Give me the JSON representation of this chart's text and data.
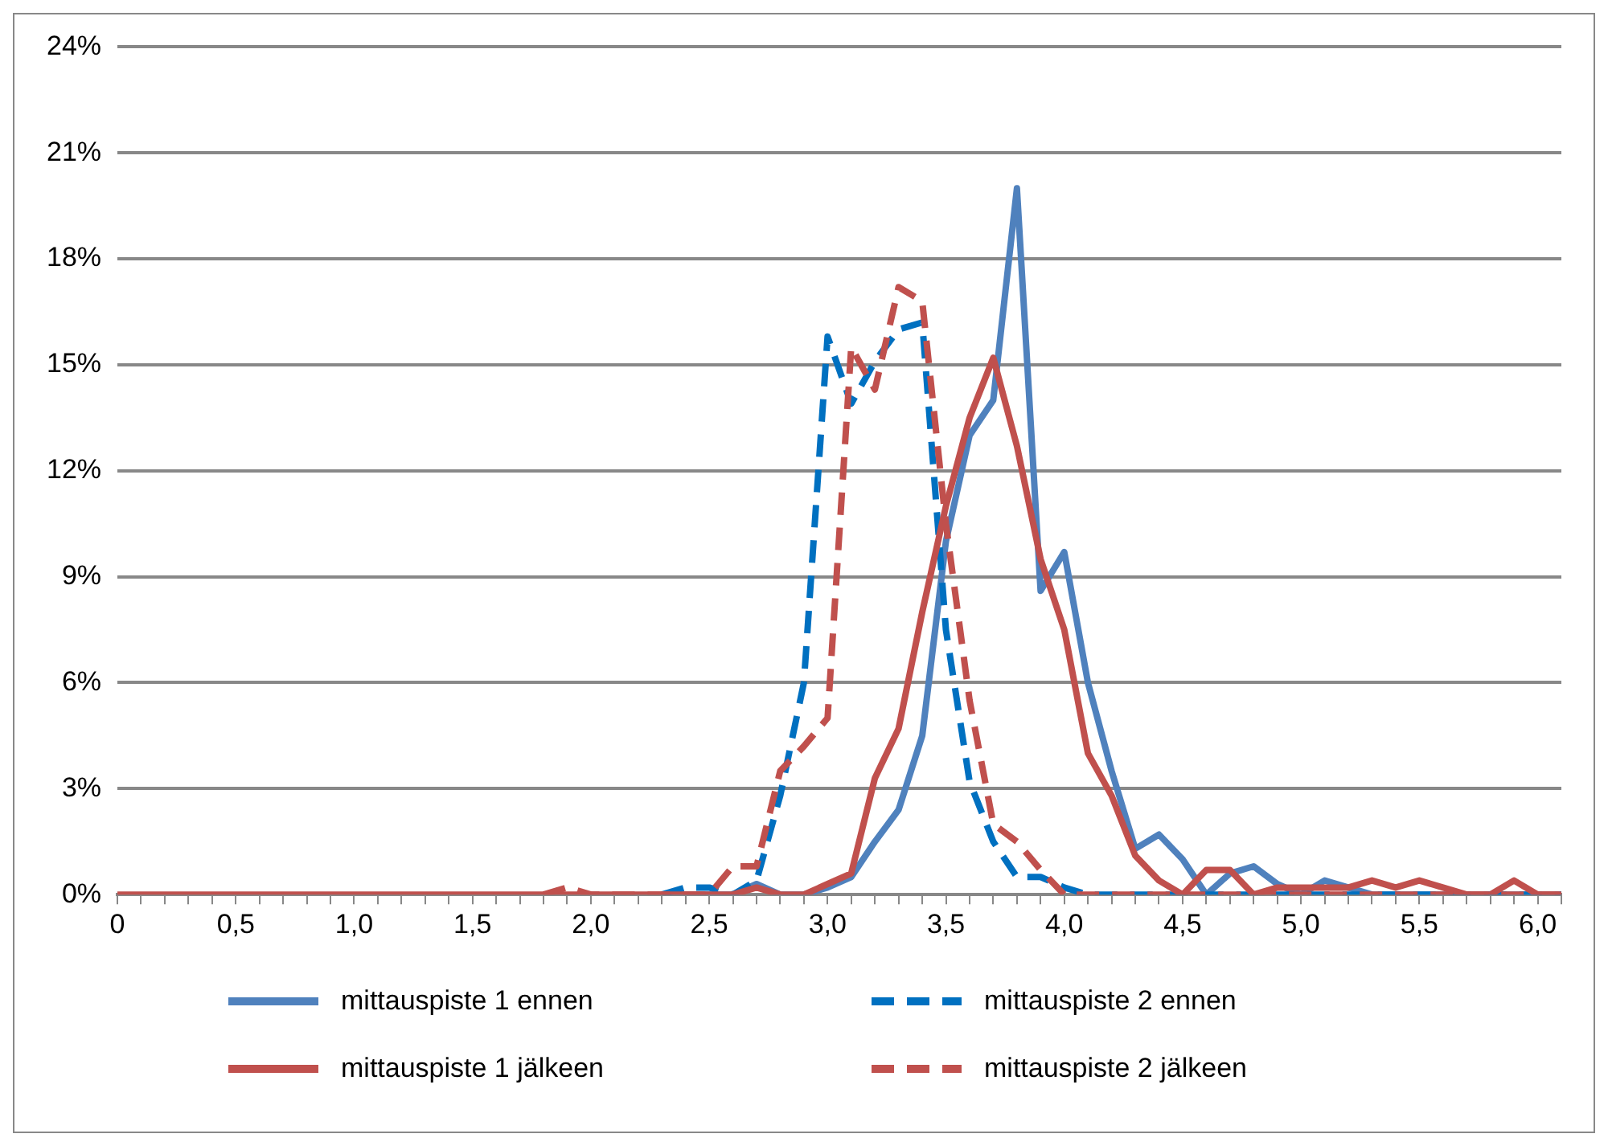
{
  "chart_data": {
    "type": "line",
    "categories": [
      "0",
      null,
      null,
      null,
      null,
      "0,5",
      null,
      null,
      null,
      null,
      "1,0",
      null,
      null,
      null,
      null,
      "1,5",
      null,
      null,
      null,
      null,
      "2,0",
      null,
      null,
      null,
      null,
      "2,5",
      null,
      null,
      null,
      null,
      "3,0",
      null,
      null,
      null,
      null,
      "3,5",
      null,
      null,
      null,
      null,
      "4,0",
      null,
      null,
      null,
      null,
      "4,5",
      null,
      null,
      null,
      null,
      "5,0",
      null,
      null,
      null,
      null,
      "5,5",
      null,
      null,
      null,
      null,
      "6,0",
      null
    ],
    "series": [
      {
        "name": "mittauspiste 1 ennen",
        "color": "#4f81bd",
        "line_style": "solid",
        "values": [
          null,
          null,
          null,
          null,
          null,
          null,
          null,
          null,
          null,
          null,
          null,
          null,
          null,
          null,
          null,
          null,
          null,
          null,
          null,
          null,
          null,
          null,
          null,
          0,
          0,
          0,
          0,
          0.3,
          0,
          0,
          0.2,
          0.5,
          1.5,
          2.4,
          4.5,
          10,
          13,
          14,
          20,
          8.6,
          9.7,
          6,
          3.5,
          1.3,
          1.7,
          1,
          0,
          0.6,
          0.8,
          0.3,
          0,
          0.4,
          0.2,
          0,
          0,
          0,
          0,
          0,
          0,
          0,
          0,
          0
        ]
      },
      {
        "name": "mittauspiste 2 ennen",
        "color": "#0070c0",
        "line_style": "dashed",
        "values": [
          null,
          null,
          null,
          null,
          null,
          null,
          null,
          null,
          null,
          null,
          null,
          null,
          null,
          null,
          null,
          null,
          null,
          null,
          null,
          null,
          null,
          null,
          null,
          0,
          0.2,
          0.2,
          0,
          0.4,
          2.8,
          6,
          15.8,
          13.9,
          15.1,
          16,
          16.2,
          7.5,
          3.2,
          1.5,
          0.5,
          0.5,
          0.2,
          0,
          0,
          0,
          0,
          0,
          0,
          0,
          0,
          0,
          0,
          0,
          0,
          0,
          0,
          0,
          0,
          0,
          0,
          0,
          0,
          0
        ]
      },
      {
        "name": "mittauspiste 1 jälkeen",
        "color": "#c0504d",
        "line_style": "solid",
        "values": [
          0,
          0,
          0,
          0,
          0,
          0,
          0,
          0,
          0,
          0,
          0,
          0,
          0,
          0,
          0,
          0,
          0,
          0,
          0,
          0,
          0,
          0,
          0,
          0,
          0,
          0,
          0,
          0.2,
          0,
          0,
          0.3,
          0.6,
          3.3,
          4.7,
          8,
          11,
          13.5,
          15.2,
          12.7,
          9.5,
          7.5,
          4,
          2.8,
          1.1,
          0.4,
          0,
          0.7,
          0.7,
          0,
          0.2,
          0.2,
          0.2,
          0.2,
          0.4,
          0.2,
          0.4,
          0.2,
          0,
          0,
          0.4,
          0,
          0
        ]
      },
      {
        "name": "mittauspiste 2 jälkeen",
        "color": "#c0504d",
        "line_style": "dashed",
        "values": [
          null,
          null,
          null,
          null,
          null,
          null,
          null,
          null,
          null,
          null,
          null,
          null,
          null,
          null,
          null,
          null,
          null,
          null,
          0,
          0.2,
          0,
          0,
          0,
          0,
          0,
          0,
          0.8,
          0.8,
          3.5,
          4.2,
          5,
          15.5,
          14.3,
          17.2,
          16.8,
          10.5,
          5.5,
          2,
          1.5,
          0.7,
          0,
          0,
          0,
          0,
          0,
          0,
          0,
          0,
          0,
          0,
          0,
          0,
          0,
          0,
          0,
          0,
          0,
          0,
          0,
          0,
          0,
          0
        ]
      }
    ],
    "ylim": [
      0,
      24
    ],
    "yticks": [
      {
        "value": 0,
        "label": "0%"
      },
      {
        "value": 3,
        "label": "3%"
      },
      {
        "value": 6,
        "label": "6%"
      },
      {
        "value": 9,
        "label": "9%"
      },
      {
        "value": 12,
        "label": "12%"
      },
      {
        "value": 15,
        "label": "15%"
      },
      {
        "value": 18,
        "label": "18%"
      },
      {
        "value": 21,
        "label": "21%"
      },
      {
        "value": 24,
        "label": "24%"
      }
    ],
    "grid": "y",
    "legend": "bottom",
    "marker": "none"
  }
}
